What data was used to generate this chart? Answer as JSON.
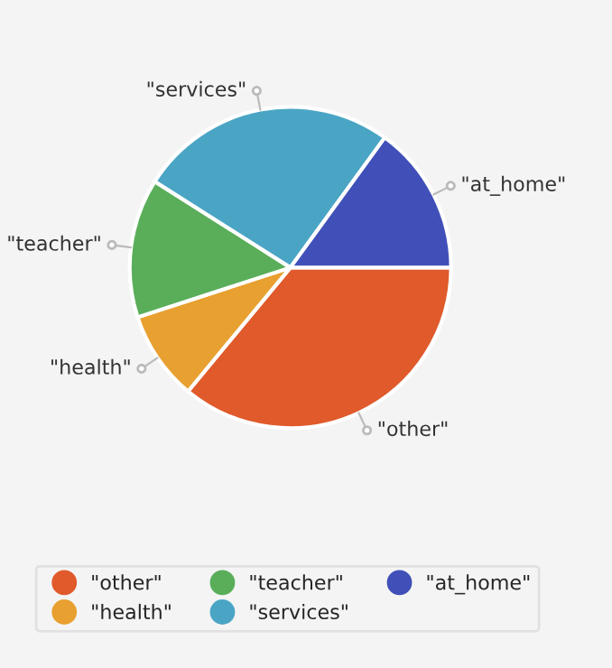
{
  "chart_data": {
    "type": "pie",
    "categories": [
      "\"other\"",
      "\"health\"",
      "\"teacher\"",
      "\"services\"",
      "\"at_home\""
    ],
    "values": [
      36,
      9,
      14,
      26,
      15
    ],
    "colors": [
      "#e05a2b",
      "#e8a030",
      "#5aae5a",
      "#4aa5c5",
      "#4050b8"
    ],
    "legend": "bottom"
  }
}
